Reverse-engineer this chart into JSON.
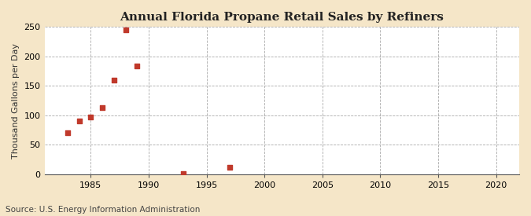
{
  "title": "Annual Florida Propane Retail Sales by Refiners",
  "ylabel": "Thousand Gallons per Day",
  "source": "Source: U.S. Energy Information Administration",
  "fig_background_color": "#f5e6c8",
  "plot_background_color": "#ffffff",
  "marker_color": "#c0392b",
  "marker_size": 5,
  "x_data": [
    1983,
    1984,
    1985,
    1986,
    1987,
    1988,
    1989,
    1993,
    1997
  ],
  "y_data": [
    70,
    90,
    97,
    113,
    160,
    245,
    184,
    1,
    12
  ],
  "xlim": [
    1981,
    2022
  ],
  "ylim": [
    0,
    250
  ],
  "xticks": [
    1985,
    1990,
    1995,
    2000,
    2005,
    2010,
    2015,
    2020
  ],
  "yticks": [
    0,
    50,
    100,
    150,
    200,
    250
  ],
  "grid_color": "#aaaaaa",
  "title_fontsize": 11,
  "ylabel_fontsize": 8,
  "source_fontsize": 7.5,
  "tick_fontsize": 8
}
